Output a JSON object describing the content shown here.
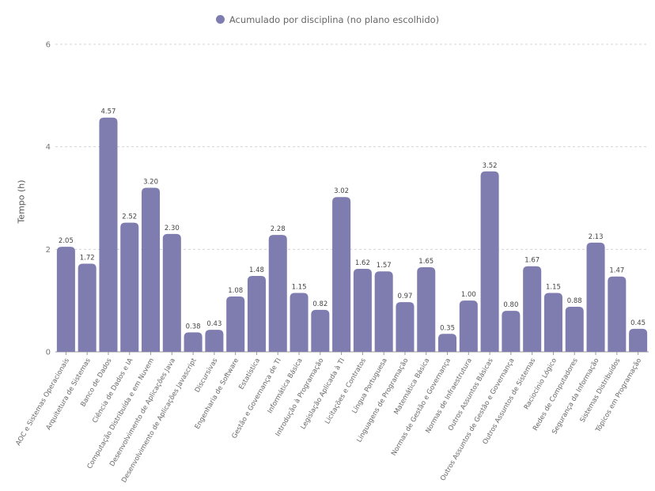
{
  "chart_data": {
    "type": "bar",
    "legend_position": "top",
    "grid": true,
    "ylabel": "Tempo (h)",
    "xlabel": "",
    "ylim": [
      0,
      6
    ],
    "yticks": [
      "0",
      "2",
      "4",
      "6"
    ],
    "categories": [
      "AOC e Sistemas Operacionais",
      "Arquitetura de Sistemas",
      "Banco de Dados",
      "Ciência de Dados e IA",
      "Computação Distribuída e em Nuvem",
      "Desenvolvimento de Aplicações Java",
      "Desenvolvimento de Aplicações Javascript",
      "Discursivas",
      "Engenharia de Software",
      "Estatística",
      "Gestão e Governança de TI",
      "Informática Básica",
      "Introdução à Programação",
      "Legislação Aplicada à TI",
      "Licitações e Contratos",
      "Língua Portuguesa",
      "Linguagens de Programação",
      "Matemática Básica",
      "Normas de Gestão e Governança",
      "Normas de Infraestrutura",
      "Outros Assuntos Básicas",
      "Outros Assuntos de Gestão e Governança",
      "Outros Assuntos de Sistemas",
      "Raciocínio Lógico",
      "Redes de Computadores",
      "Segurança da Informação",
      "Sistemas Distribuídos",
      "Tópicos em Programação"
    ],
    "series": [
      {
        "name": "Acumulado por disciplina (no plano escolhido)",
        "color": "#7f7db0",
        "values": [
          2.05,
          1.72,
          4.57,
          2.52,
          3.2,
          2.3,
          0.38,
          0.43,
          1.08,
          1.48,
          2.28,
          1.15,
          0.82,
          3.02,
          1.62,
          1.57,
          0.97,
          1.65,
          0.35,
          1.0,
          3.52,
          0.8,
          1.67,
          1.15,
          0.88,
          2.13,
          1.47,
          0.45
        ],
        "labels": [
          "2.05",
          "1.72",
          "4.57",
          "2.52",
          "3.20",
          "2.30",
          "0.38",
          "0.43",
          "1.08",
          "1.48",
          "2.28",
          "1.15",
          "0.82",
          "3.02",
          "1.62",
          "1.57",
          "0.97",
          "1.65",
          "0.35",
          "1.00",
          "3.52",
          "0.80",
          "1.67",
          "1.15",
          "0.88",
          "2.13",
          "1.47",
          "0.45"
        ]
      }
    ]
  }
}
